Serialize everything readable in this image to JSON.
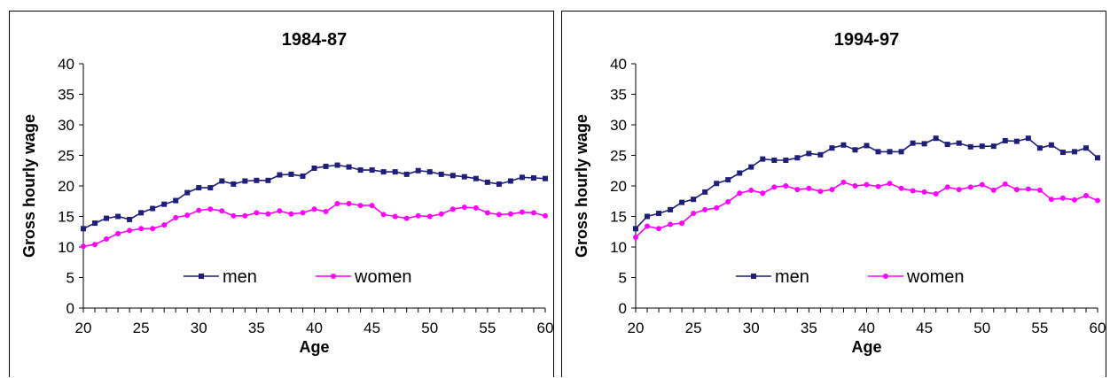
{
  "chart_data": [
    {
      "type": "line",
      "title": "1984-87",
      "xlabel": "Age",
      "ylabel": "Gross hourly wage",
      "xlim": [
        20,
        60
      ],
      "ylim": [
        0,
        40
      ],
      "x_ticks": [
        20,
        25,
        30,
        35,
        40,
        45,
        50,
        55,
        60
      ],
      "y_ticks": [
        0,
        5,
        10,
        15,
        20,
        25,
        30,
        35,
        40
      ],
      "grid": false,
      "legend_position": "bottom-center",
      "x": [
        20,
        21,
        22,
        23,
        24,
        25,
        26,
        27,
        28,
        29,
        30,
        31,
        32,
        33,
        34,
        35,
        36,
        37,
        38,
        39,
        40,
        41,
        42,
        43,
        44,
        45,
        46,
        47,
        48,
        49,
        50,
        51,
        52,
        53,
        54,
        55,
        56,
        57,
        58,
        59,
        60
      ],
      "series": [
        {
          "name": "men",
          "color": "#1f1f7a",
          "marker": "square",
          "values": [
            13.0,
            13.9,
            14.7,
            15.0,
            14.5,
            15.6,
            16.3,
            17.0,
            17.6,
            18.9,
            19.7,
            19.7,
            20.8,
            20.3,
            20.8,
            20.9,
            20.9,
            21.8,
            21.9,
            21.6,
            22.9,
            23.2,
            23.4,
            23.1,
            22.6,
            22.6,
            22.3,
            22.3,
            21.9,
            22.5,
            22.3,
            21.9,
            21.7,
            21.5,
            21.2,
            20.6,
            20.3,
            20.8,
            21.4,
            21.3,
            21.2
          ]
        },
        {
          "name": "women",
          "color": "#ff00ff",
          "marker": "circle",
          "values": [
            10.1,
            10.4,
            11.3,
            12.2,
            12.7,
            13.0,
            13.0,
            13.6,
            14.8,
            15.2,
            16.0,
            16.2,
            15.9,
            15.1,
            15.1,
            15.6,
            15.4,
            15.9,
            15.4,
            15.6,
            16.2,
            15.8,
            17.1,
            17.1,
            16.8,
            16.8,
            15.3,
            15.0,
            14.7,
            15.1,
            15.0,
            15.4,
            16.2,
            16.5,
            16.4,
            15.6,
            15.3,
            15.4,
            15.7,
            15.6,
            15.1
          ]
        }
      ]
    },
    {
      "type": "line",
      "title": "1994-97",
      "xlabel": "Age",
      "ylabel": "Gross hourly wage",
      "xlim": [
        20,
        60
      ],
      "ylim": [
        0,
        40
      ],
      "x_ticks": [
        20,
        25,
        30,
        35,
        40,
        45,
        50,
        55,
        60
      ],
      "y_ticks": [
        0,
        5,
        10,
        15,
        20,
        25,
        30,
        35,
        40
      ],
      "grid": false,
      "legend_position": "bottom-center",
      "x": [
        20,
        21,
        22,
        23,
        24,
        25,
        26,
        27,
        28,
        29,
        30,
        31,
        32,
        33,
        34,
        35,
        36,
        37,
        38,
        39,
        40,
        41,
        42,
        43,
        44,
        45,
        46,
        47,
        48,
        49,
        50,
        51,
        52,
        53,
        54,
        55,
        56,
        57,
        58,
        59,
        60
      ],
      "series": [
        {
          "name": "men",
          "color": "#1f1f7a",
          "marker": "square",
          "values": [
            13.0,
            15.0,
            15.5,
            16.1,
            17.3,
            17.8,
            19.0,
            20.4,
            21.0,
            22.1,
            23.1,
            24.4,
            24.2,
            24.2,
            24.6,
            25.3,
            25.1,
            26.2,
            26.7,
            25.9,
            26.6,
            25.6,
            25.6,
            25.6,
            27.0,
            26.9,
            27.8,
            26.8,
            27.0,
            26.4,
            26.5,
            26.5,
            27.4,
            27.3,
            27.8,
            26.2,
            26.7,
            25.5,
            25.6,
            26.2,
            24.6
          ]
        },
        {
          "name": "women",
          "color": "#ff00ff",
          "marker": "circle",
          "values": [
            11.6,
            13.4,
            13.0,
            13.7,
            13.9,
            15.5,
            16.1,
            16.4,
            17.4,
            18.8,
            19.3,
            18.8,
            19.8,
            20.0,
            19.4,
            19.6,
            19.1,
            19.4,
            20.6,
            20.0,
            20.2,
            19.9,
            20.4,
            19.6,
            19.2,
            19.0,
            18.7,
            19.8,
            19.4,
            19.8,
            20.2,
            19.3,
            20.3,
            19.4,
            19.5,
            19.3,
            17.8,
            18.0,
            17.7,
            18.4,
            17.6
          ]
        }
      ]
    }
  ]
}
